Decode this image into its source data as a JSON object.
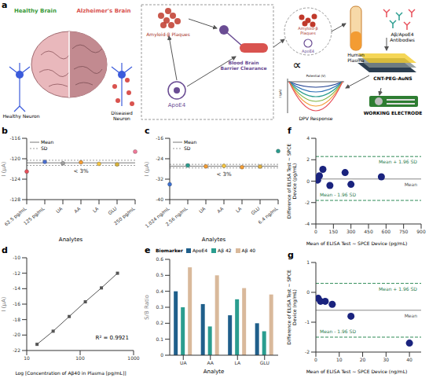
{
  "diagram": {
    "panel": "a",
    "healthy_brain": "Healthy Brain",
    "alzheimers_brain": "Alzheimer's Brain",
    "healthy_neuron": "Healthy Neuron",
    "diseased_neuron": "Diseased Neuron",
    "plaques": "Amyloid-β Plaques",
    "apoe4": "ApoE4",
    "bbb": "Blood Brain Barrier Clearance",
    "proportional": "∝",
    "plasma": "Human Plasma",
    "antibodies": "Aβ/ApoE4 Antibodies",
    "electrode_coating": "CNT-PEG-AuNS",
    "dpv": "DPV Response",
    "dpv_y_label": "I (μA)",
    "dpv_x_label": "Potential (V)",
    "working_electrode": "WORKING ELECTRODE"
  },
  "chart_data": [
    {
      "panel": "b",
      "type": "scatter",
      "categories": [
        "62.5 pg/mL",
        "125 pg/mL",
        "UA",
        "AA",
        "LA",
        "GLU",
        "250 pg/mL"
      ],
      "values": [
        -122.5,
        -120.6,
        -120.9,
        -120.7,
        -121,
        -121.1,
        -118.6
      ],
      "colors": [
        "#e8505b",
        "#4a6fd1",
        "#9e9e9e",
        "#f39c33",
        "#f5c542",
        "#d9b43a",
        "#f27a9a"
      ],
      "x_label": "Analytes",
      "y_label": "I (μA)",
      "ylim": [
        -128,
        -116
      ],
      "yticks": [
        -128,
        -124,
        -120,
        -116
      ],
      "reference_lines": [
        {
          "name": "Mean",
          "value": -120.8
        },
        {
          "name": "SD",
          "value": -120.3
        },
        {
          "name": "SD",
          "value": -121.3
        }
      ],
      "annotation": "< 3%",
      "legend": "upper left"
    },
    {
      "panel": "c",
      "type": "scatter",
      "categories": [
        "1.024 ng/mL",
        "2.56 ng/mL",
        "UA",
        "AA",
        "LA",
        "GLU",
        "6.4 ng/mL"
      ],
      "values": [
        -34,
        -26.6,
        -27,
        -26.8,
        -27.3,
        -27.1,
        -21
      ],
      "colors": [
        "#3b6fd1",
        "#2a9d8f",
        "#f39c33",
        "#f5c542",
        "#f39c33",
        "#e0b040",
        "#2a9d8f"
      ],
      "x_label": "Analytes",
      "y_label": "I (μA)",
      "ylim": [
        -40,
        -16
      ],
      "yticks": [
        -40,
        -32,
        -24,
        -16
      ],
      "reference_lines": [
        {
          "name": "Mean",
          "value": -26.9
        },
        {
          "name": "SD",
          "value": -26.2
        },
        {
          "name": "SD",
          "value": -27.6
        }
      ],
      "annotation": "< 3%",
      "legend": "upper left"
    },
    {
      "panel": "d",
      "type": "line",
      "x": [
        15.6,
        31.25,
        62.5,
        125,
        250,
        500
      ],
      "values": [
        -21.2,
        -19.5,
        -17.6,
        -15.7,
        -13.9,
        -12
      ],
      "color": "#555555",
      "marker": "square",
      "log": "x",
      "xlim": [
        10,
        1000
      ],
      "xticks": [
        10,
        100,
        1000
      ],
      "ylim": [
        -22,
        -10
      ],
      "yticks": [
        -22,
        -20,
        -18,
        -16,
        -14,
        -12,
        -10
      ],
      "x_label": "Log [Concentration of Aβ40 in Plasma [pg/mL]]",
      "y_label": "I (μA)",
      "annotation": "R² = 0.9921"
    },
    {
      "panel": "e",
      "type": "bar",
      "categories": [
        "UA",
        "AA",
        "LA",
        "GLU"
      ],
      "series": [
        {
          "name": "ApoE4",
          "color": "#1f5f8b",
          "values": [
            0.4,
            0.32,
            0.25,
            0.2
          ]
        },
        {
          "name": "Aβ 42",
          "color": "#2a9d8f",
          "values": [
            0.3,
            0.18,
            0.35,
            0.15
          ]
        },
        {
          "name": "Aβ 40",
          "color": "#d9b99b",
          "values": [
            0.55,
            0.5,
            0.42,
            0.38
          ]
        }
      ],
      "ylim": [
        0,
        0.6
      ],
      "yticks": [
        0,
        0.1,
        0.2,
        0.3,
        0.4,
        0.5,
        0.6
      ],
      "x_label": "Analyte",
      "y_label": "S/B Ratio",
      "legend_title": "Biomarker",
      "legend": "top"
    },
    {
      "panel": "f",
      "type": "scatter",
      "x": [
        15,
        30,
        60,
        120,
        250,
        300,
        560
      ],
      "values": [
        0.1,
        0.5,
        1.1,
        -0.4,
        0.8,
        -0.3,
        0.4
      ],
      "color": "#1a237e",
      "xlim": [
        0,
        900
      ],
      "xticks": [
        0,
        150,
        300,
        450,
        600,
        750,
        900
      ],
      "ylim": [
        -4,
        4
      ],
      "yticks": [
        -4,
        -2,
        0,
        2,
        4
      ],
      "x_label": "Mean of ELISA Test ~ SPCE Device (pg/mL)",
      "y_label": "Difference of ELISA Test ~ SPCE Device (pg/mL)",
      "reference_lines": [
        {
          "name": "Mean + 1.96 SD",
          "value": 2.3
        },
        {
          "name": "Mean",
          "value": 0.2
        },
        {
          "name": "Mean - 1.96 SD",
          "value": -1.8
        }
      ]
    },
    {
      "panel": "g",
      "type": "scatter",
      "x": [
        1,
        2,
        4,
        7,
        15,
        40
      ],
      "values": [
        -0.2,
        -0.3,
        -0.3,
        -0.4,
        -0.8,
        -1.7
      ],
      "color": "#1a237e",
      "xlim": [
        0,
        45
      ],
      "xticks": [
        0,
        10,
        20,
        30,
        40
      ],
      "ylim": [
        -2,
        1
      ],
      "yticks": [
        -2,
        -1,
        0,
        1
      ],
      "x_label": "Mean of ELISA Test ~ SPCE Device (ng/mL)",
      "y_label": "Difference of ELISA Test ~ SPCE Device (ng/mL)",
      "reference_lines": [
        {
          "name": "Mean + 1.96 SD",
          "value": 0.3
        },
        {
          "name": "Mean",
          "value": -0.6
        },
        {
          "name": "Mean - 1.96 SD",
          "value": -1.5
        }
      ]
    }
  ]
}
